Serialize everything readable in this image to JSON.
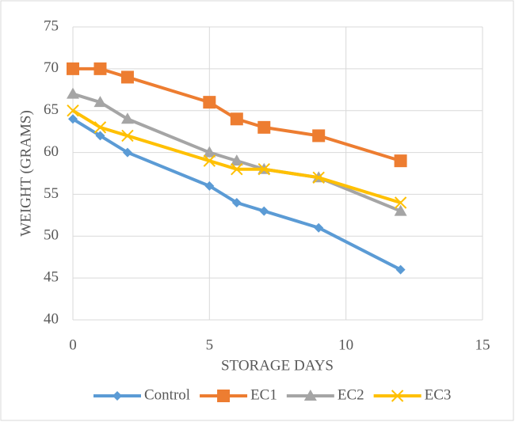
{
  "chart_data": {
    "type": "line",
    "x_label": "STORAGE DAYS",
    "y_label": "WEIGHT (GRAMS)",
    "x": [
      0,
      1,
      2,
      5,
      6,
      7,
      9,
      12
    ],
    "series": [
      {
        "name": "Control",
        "color": "#5b9bd5",
        "marker": "diamond",
        "values": [
          64,
          62,
          60,
          56,
          54,
          53,
          51,
          46
        ]
      },
      {
        "name": "EC1",
        "color": "#ed7d31",
        "marker": "square",
        "values": [
          70,
          70,
          69,
          66,
          64,
          63,
          62,
          59
        ]
      },
      {
        "name": "EC2",
        "color": "#a5a5a5",
        "marker": "triangle",
        "values": [
          67,
          66,
          64,
          60,
          59,
          58,
          57,
          53
        ]
      },
      {
        "name": "EC3",
        "color": "#ffc000",
        "marker": "x",
        "values": [
          65,
          63,
          62,
          59,
          58,
          58,
          57,
          54
        ]
      }
    ],
    "xlim": [
      0,
      15
    ],
    "xticks": [
      0,
      5,
      10,
      15
    ],
    "ylim": [
      40,
      75
    ],
    "yticks": [
      40,
      45,
      50,
      55,
      60,
      65,
      70,
      75
    ],
    "grid": true,
    "legend": "bottom"
  }
}
